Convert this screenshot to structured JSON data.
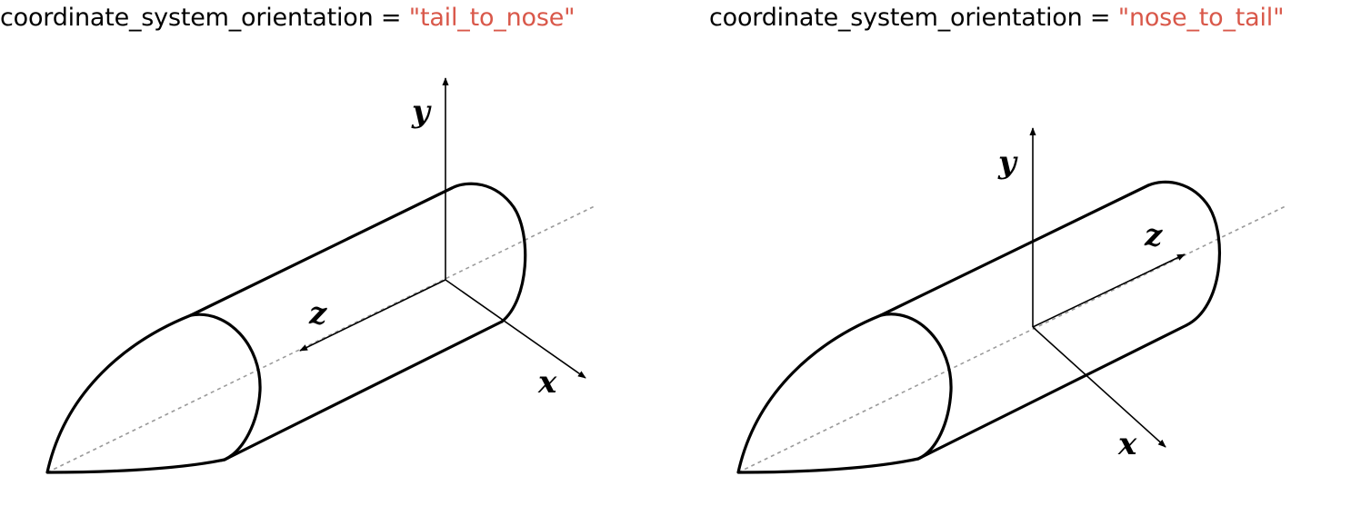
{
  "panels": [
    {
      "caption_key": "coordinate_system_orientation",
      "caption_operator": "=",
      "caption_value": "\"tail_to_nose\"",
      "axes": {
        "x": "x",
        "y": "y",
        "z": "z"
      }
    },
    {
      "caption_key": "coordinate_system_orientation",
      "caption_operator": "=",
      "caption_value": "\"nose_to_tail\"",
      "axes": {
        "x": "x",
        "y": "y",
        "z": "z"
      }
    }
  ],
  "colors": {
    "value_text": "#d9584a",
    "outline": "#000000",
    "centerline": "#9a9a9a"
  }
}
